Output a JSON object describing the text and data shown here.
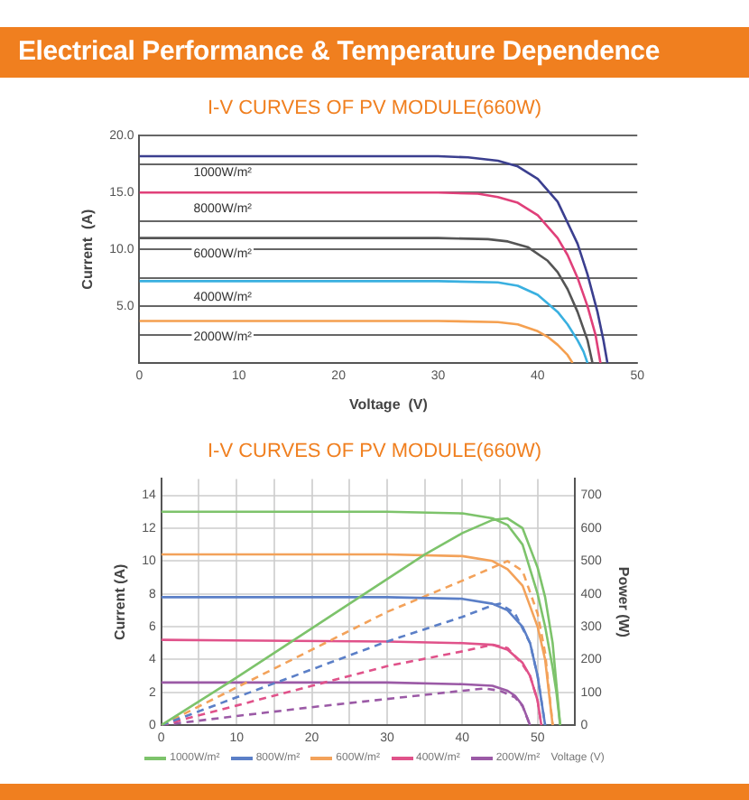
{
  "chart_data": [
    {
      "type": "line",
      "title": "I-V CURVES OF PV MODULE(660W)",
      "annotations": [
        "Electrical Performance & Temperature Dependence"
      ],
      "xlabel": "Voltage  (V)",
      "ylabel": "Current  (A)",
      "xlim": [
        0,
        50
      ],
      "xticks": [
        0,
        10,
        20,
        30,
        40,
        50
      ],
      "ylim": [
        0,
        20
      ],
      "yticks": [
        {
          "value": 0,
          "label": null
        },
        {
          "value": 2.5,
          "label": null
        },
        {
          "value": 5,
          "label": "5.0"
        },
        {
          "value": 7.5,
          "label": null
        },
        {
          "value": 10,
          "label": "10.0"
        },
        {
          "value": 12.5,
          "label": null
        },
        {
          "value": 15,
          "label": "15.0"
        },
        {
          "value": 17.5,
          "label": null
        },
        {
          "value": 20,
          "label": "20.0"
        }
      ],
      "grid": "y",
      "legend": false,
      "series": [
        {
          "name": "1000W/m²",
          "color": "#3b3f8f",
          "x": [
            0,
            10,
            20,
            30,
            33,
            36,
            38,
            40,
            42,
            44,
            45,
            46,
            46.6,
            47
          ],
          "values": [
            18.2,
            18.2,
            18.2,
            18.2,
            18.1,
            17.8,
            17.3,
            16.2,
            14.2,
            10.5,
            7.8,
            4.5,
            2,
            0
          ]
        },
        {
          "name": "8000W/m²",
          "color": "#e0407a",
          "x": [
            0,
            10,
            20,
            30,
            34,
            36,
            38,
            40,
            42,
            43,
            44,
            45,
            45.8,
            46.3
          ],
          "values": [
            15,
            15,
            15,
            15,
            14.9,
            14.6,
            14.1,
            13,
            11,
            9.5,
            7.5,
            5,
            2.5,
            0
          ]
        },
        {
          "name": "6000W/m²",
          "color": "#555555",
          "x": [
            0,
            10,
            20,
            30,
            35,
            37,
            39,
            41,
            42,
            43,
            44,
            45,
            45.5
          ],
          "values": [
            11,
            11,
            11,
            11,
            10.9,
            10.7,
            10.2,
            9,
            8,
            6.5,
            4.5,
            2,
            0
          ]
        },
        {
          "name": "4000W/m²",
          "color": "#3ab0e0",
          "x": [
            0,
            10,
            20,
            30,
            36,
            38,
            40,
            42,
            43,
            44,
            44.6,
            45
          ],
          "values": [
            7.2,
            7.2,
            7.2,
            7.2,
            7.1,
            6.8,
            6,
            4.5,
            3.4,
            2,
            1,
            0
          ]
        },
        {
          "name": "2000W/m²",
          "color": "#f5a050",
          "x": [
            0,
            10,
            20,
            30,
            36,
            38,
            40,
            41,
            42,
            43,
            43.5
          ],
          "values": [
            3.7,
            3.7,
            3.7,
            3.7,
            3.6,
            3.4,
            2.8,
            2.3,
            1.6,
            0.7,
            0
          ]
        }
      ]
    },
    {
      "type": "line",
      "title": "I-V CURVES OF PV MODULE(660W)",
      "xlabel": "Voltage (V)",
      "ylabel": "Current (A)",
      "y2label": "Power (W)",
      "xlim": [
        0,
        55
      ],
      "xticks": [
        0,
        {
          "value": 5,
          "label": null
        },
        10,
        {
          "value": 15,
          "label": null
        },
        20,
        {
          "value": 25,
          "label": null
        },
        30,
        {
          "value": 35,
          "label": null
        },
        40,
        {
          "value": 45,
          "label": null
        },
        50,
        {
          "value": 55,
          "label": null
        }
      ],
      "ylim": [
        0,
        15
      ],
      "yticks": [
        0,
        2,
        4,
        6,
        8,
        10,
        12,
        14
      ],
      "y2lim": [
        0,
        750
      ],
      "y2ticks": [
        0,
        100,
        200,
        300,
        400,
        500,
        600,
        700
      ],
      "grid": true,
      "legend": "bottom",
      "series": [
        {
          "name": "1000W/m²",
          "color": "#7dc36b",
          "x": [
            0,
            10,
            20,
            30,
            40,
            44,
            46,
            48,
            50,
            51,
            52,
            52.5,
            53
          ],
          "values": [
            13,
            13,
            13,
            13,
            12.9,
            12.6,
            12.2,
            11,
            8,
            6,
            3.5,
            2,
            0
          ]
        },
        {
          "color": "#7dc36b",
          "axis": "y2",
          "x": [
            0,
            10,
            20,
            30,
            35,
            40,
            44,
            46,
            48,
            50,
            51,
            52,
            53
          ],
          "values": [
            0,
            145,
            295,
            445,
            520,
            585,
            625,
            630,
            600,
            480,
            390,
            250,
            0
          ]
        },
        {
          "name": "800W/m²",
          "color": "#5b7fc7",
          "x": [
            0,
            30,
            40,
            44,
            46,
            48,
            49,
            50,
            51
          ],
          "values": [
            7.8,
            7.8,
            7.7,
            7.4,
            7,
            6,
            5,
            3,
            0
          ]
        },
        {
          "color": "#5b7fc7",
          "axis": "y2",
          "line_style": "dashed",
          "x": [
            0,
            10,
            20,
            30,
            40,
            44,
            45,
            47,
            49,
            50,
            51
          ],
          "values": [
            0,
            85,
            170,
            255,
            330,
            365,
            370,
            340,
            250,
            150,
            0
          ]
        },
        {
          "name": "600W/m²",
          "color": "#f3a25a",
          "x": [
            0,
            30,
            40,
            44,
            46,
            48,
            50,
            51,
            52
          ],
          "values": [
            10.4,
            10.4,
            10.3,
            10,
            9.5,
            8.5,
            6,
            4,
            0
          ]
        },
        {
          "color": "#f3a25a",
          "axis": "y2",
          "line_style": "dashed",
          "x": [
            0,
            10,
            20,
            30,
            40,
            44,
            46,
            48,
            50,
            51,
            52
          ],
          "values": [
            0,
            115,
            230,
            345,
            440,
            480,
            500,
            470,
            340,
            220,
            0
          ]
        },
        {
          "name": "400W/m²",
          "color": "#e0528a",
          "x": [
            0,
            30,
            40,
            44,
            46,
            48,
            49,
            50,
            50.5
          ],
          "values": [
            5.2,
            5.1,
            5,
            4.9,
            4.6,
            3.8,
            3,
            1.5,
            0
          ]
        },
        {
          "color": "#e0528a",
          "axis": "y2",
          "line_style": "dashed",
          "x": [
            0,
            10,
            20,
            30,
            40,
            44,
            46,
            48,
            49,
            50,
            50.5
          ],
          "values": [
            0,
            60,
            120,
            180,
            225,
            245,
            235,
            185,
            150,
            75,
            0
          ]
        },
        {
          "name": "200W/m²",
          "color": "#9b5aa6",
          "x": [
            0,
            30,
            40,
            44,
            46,
            47,
            48,
            49
          ],
          "values": [
            2.6,
            2.6,
            2.5,
            2.4,
            2.1,
            1.8,
            1.2,
            0
          ]
        },
        {
          "color": "#9b5aa6",
          "axis": "y2",
          "line_style": "dashed",
          "x": [
            0,
            10,
            20,
            30,
            40,
            43,
            45,
            47,
            48,
            49
          ],
          "values": [
            0,
            28,
            55,
            80,
            105,
            112,
            105,
            85,
            58,
            0
          ]
        }
      ]
    }
  ]
}
